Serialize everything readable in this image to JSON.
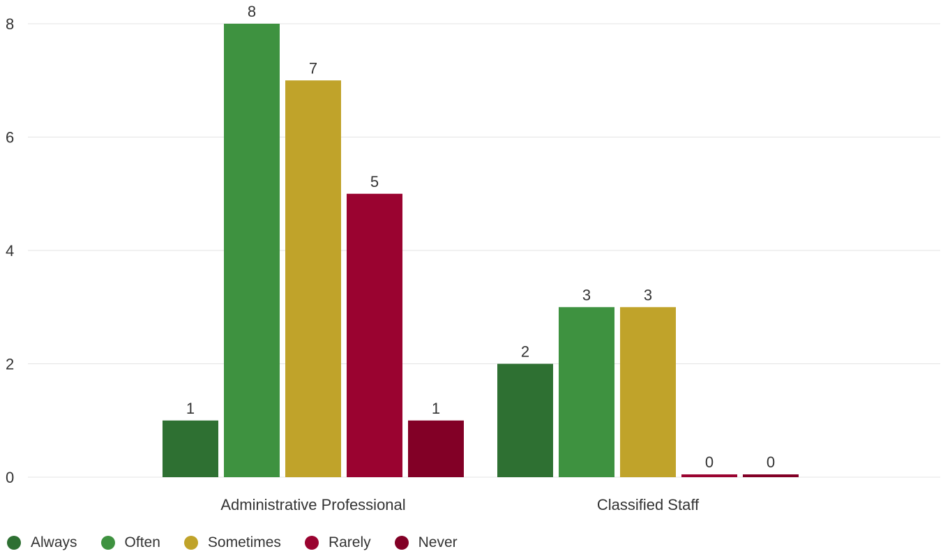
{
  "chart_data": {
    "type": "bar",
    "categories": [
      "Administrative Professional",
      "Classified Staff"
    ],
    "series": [
      {
        "name": "Always",
        "values": [
          1,
          2
        ],
        "color": "#2e7032"
      },
      {
        "name": "Often",
        "values": [
          8,
          3
        ],
        "color": "#3e9240"
      },
      {
        "name": "Sometimes",
        "values": [
          7,
          3
        ],
        "color": "#c0a32a"
      },
      {
        "name": "Rarely",
        "values": [
          5,
          0
        ],
        "color": "#9a0330"
      },
      {
        "name": "Never",
        "values": [
          1,
          0
        ],
        "color": "#820026"
      }
    ],
    "y_ticks": [
      "0",
      "2",
      "4",
      "6",
      "8"
    ],
    "ylim": [
      0,
      8
    ],
    "grid": true,
    "legend_position": "bottom-left",
    "title": "",
    "xlabel": "",
    "ylabel": ""
  }
}
